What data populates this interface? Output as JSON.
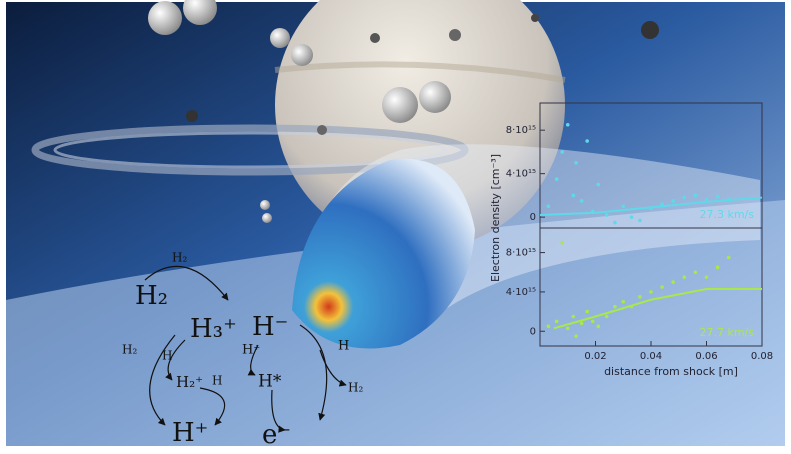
{
  "reaction": {
    "species": [
      "H₂",
      "H₃⁺",
      "H⁻",
      "H₂⁺",
      "H*",
      "H⁺",
      "e⁻"
    ],
    "arrow_labels": [
      "H₂",
      "H₂",
      "H",
      "H",
      "H⁺",
      "H",
      "H₂"
    ]
  },
  "chart_data": [
    {
      "type": "scatter",
      "y_label": "Electron density [cm⁻³]",
      "annotation": "27.3 km/s",
      "color": "#5fd9ea",
      "x": [
        0.003,
        0.006,
        0.008,
        0.01,
        0.012,
        0.013,
        0.015,
        0.017,
        0.019,
        0.021,
        0.024,
        0.027,
        0.03,
        0.033,
        0.036,
        0.04,
        0.044,
        0.048,
        0.052,
        0.056,
        0.06,
        0.064,
        0.068
      ],
      "values": [
        1000000000000000.0,
        3500000000000000.0,
        6000000000000000.0,
        8500000000000000.0,
        2000000000000000.0,
        5000000000000000.0,
        1500000000000000.0,
        7000000000000000.0,
        500000000000000.0,
        3000000000000000.0,
        200000000000000.0,
        -500000000000000.0,
        1000000000000000.0,
        0.0,
        -300000000000000.0,
        800000000000000.0,
        1200000000000000.0,
        1500000000000000.0,
        1800000000000000.0,
        2000000000000000.0,
        1600000000000000.0,
        1900000000000000.0,
        1700000000000000.0
      ],
      "fit": {
        "x": [
          0,
          0.02,
          0.04,
          0.06,
          0.08
        ],
        "values": [
          200000000000000.0,
          400000000000000.0,
          900000000000000.0,
          1400000000000000.0,
          1800000000000000.0
        ]
      },
      "xlim": [
        0,
        0.08
      ],
      "ylim": [
        -1000000000000000.0,
        1.05e+16
      ],
      "yticks": [
        {
          "value": 0,
          "label": "0"
        },
        {
          "value": 4000000000000000.0,
          "label": "4·10¹⁵"
        },
        {
          "value": 8000000000000000.0,
          "label": "8·10¹⁵"
        }
      ]
    },
    {
      "type": "scatter",
      "x_label": "distance from shock [m]",
      "annotation": "27.7 km/s",
      "color": "#a8e84c",
      "x": [
        0.003,
        0.006,
        0.008,
        0.01,
        0.012,
        0.013,
        0.015,
        0.017,
        0.019,
        0.021,
        0.024,
        0.027,
        0.03,
        0.033,
        0.036,
        0.04,
        0.044,
        0.048,
        0.052,
        0.056,
        0.06,
        0.064,
        0.068
      ],
      "values": [
        500000000000000.0,
        1000000000000000.0,
        9000000000000000.0,
        300000000000000.0,
        1500000000000000.0,
        -500000000000000.0,
        800000000000000.0,
        2000000000000000.0,
        1000000000000000.0,
        500000000000000.0,
        1500000000000000.0,
        2500000000000000.0,
        3000000000000000.0,
        2500000000000000.0,
        3500000000000000.0,
        4000000000000000.0,
        4500000000000000.0,
        5000000000000000.0,
        5500000000000000.0,
        6000000000000000.0,
        5500000000000000.0,
        6500000000000000.0,
        7500000000000000.0
      ],
      "fit": {
        "x": [
          0.005,
          0.02,
          0.04,
          0.06,
          0.08
        ],
        "values": [
          300000000000000.0,
          1500000000000000.0,
          3200000000000000.0,
          4300000000000000.0,
          4300000000000000.0
        ]
      },
      "xlim": [
        0,
        0.08
      ],
      "ylim": [
        -1500000000000000.0,
        1.05e+16
      ],
      "xticks": [
        0.02,
        0.04,
        0.06,
        0.08
      ],
      "yticks": [
        {
          "value": 0,
          "label": "0"
        },
        {
          "value": 4000000000000000.0,
          "label": "4·10¹⁵"
        },
        {
          "value": 8000000000000000.0,
          "label": "8·10¹⁵"
        }
      ]
    }
  ]
}
